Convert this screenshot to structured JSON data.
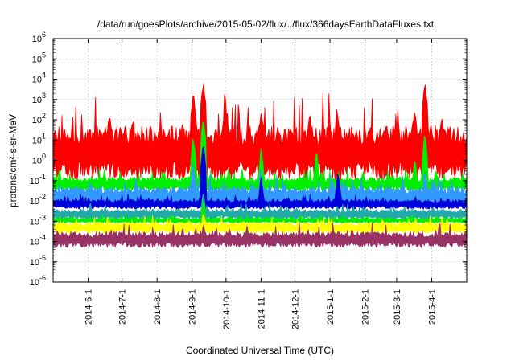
{
  "chart_data": {
    "type": "area",
    "title": "/data/run/goesPlots/archive/2015-05-02/flux/../flux/366daysEarthDataFluxes.txt",
    "xlabel": "Coordinated Universal Time (UTC)",
    "ylabel": "protons/cm²-s-sr-MeV",
    "yscale": "log",
    "ylim": [
      1e-06,
      1000000.0
    ],
    "xlim": [
      "2014-05-01",
      "2015-05-02"
    ],
    "grid": true,
    "legend": "none",
    "x_tick_labels": [
      "2014-6-1",
      "2014-7-1",
      "2014-8-1",
      "2014-9-1",
      "2014-10-1",
      "2014-11-1",
      "2014-12-1",
      "2015-1-1",
      "2015-2-1",
      "2015-3-1",
      "2015-4-1"
    ],
    "y_tick_labels": [
      "10-6",
      "10-5",
      "10-4",
      "10-3",
      "10-2",
      "10-1",
      "10 0",
      "10 1",
      "10 2",
      "10 3",
      "10 4",
      "10 5",
      "10 6"
    ],
    "series": [
      {
        "color": "#ff0000",
        "band": [
          0.1,
          50
        ],
        "peaks": [
          [
            "2014-06-20",
            300
          ],
          [
            "2014-07-10",
            150
          ],
          [
            "2014-09-02",
            3000
          ],
          [
            "2014-09-11",
            10000
          ],
          [
            "2014-10-01",
            400
          ],
          [
            "2014-11-01",
            400
          ],
          [
            "2014-12-14",
            300
          ],
          [
            "2015-01-08",
            250
          ],
          [
            "2015-03-17",
            500
          ],
          [
            "2015-03-26",
            10000
          ],
          [
            "2015-04-10",
            200
          ]
        ]
      },
      {
        "color": "#00ee00",
        "band": [
          0.03,
          0.15
        ],
        "peaks": [
          [
            "2014-09-11",
            200
          ],
          [
            "2014-09-02",
            20
          ],
          [
            "2014-11-01",
            5
          ],
          [
            "2014-12-20",
            5
          ],
          [
            "2015-03-17",
            2
          ],
          [
            "2015-03-26",
            30
          ]
        ]
      },
      {
        "color": "#3399ff",
        "band": [
          0.005,
          0.05
        ],
        "peaks": [
          [
            "2014-09-11",
            5
          ],
          [
            "2014-09-02",
            1
          ],
          [
            "2014-11-01",
            0.5
          ],
          [
            "2015-03-26",
            0.5
          ]
        ]
      },
      {
        "color": "#0000dd",
        "band": [
          0.004,
          0.012
        ],
        "peaks": [
          [
            "2014-09-11",
            10
          ],
          [
            "2014-11-01",
            0.3
          ],
          [
            "2015-01-08",
            0.5
          ]
        ]
      },
      {
        "color": "#22aaaa",
        "band": [
          0.0012,
          0.004
        ],
        "peaks": [
          [
            "2014-09-11",
            0.05
          ]
        ]
      },
      {
        "color": "#00ee00",
        "band": [
          0.0008,
          0.0015
        ],
        "peaks": [
          [
            "2014-09-11",
            0.02
          ]
        ]
      },
      {
        "color": "#ffff00",
        "band": [
          0.00025,
          0.0009
        ],
        "peaks": [
          [
            "2014-09-11",
            0.005
          ]
        ]
      },
      {
        "color": "#993366",
        "band": [
          5e-05,
          0.0003
        ],
        "peaks": [
          [
            "2014-09-11",
            0.001
          ]
        ]
      }
    ]
  }
}
